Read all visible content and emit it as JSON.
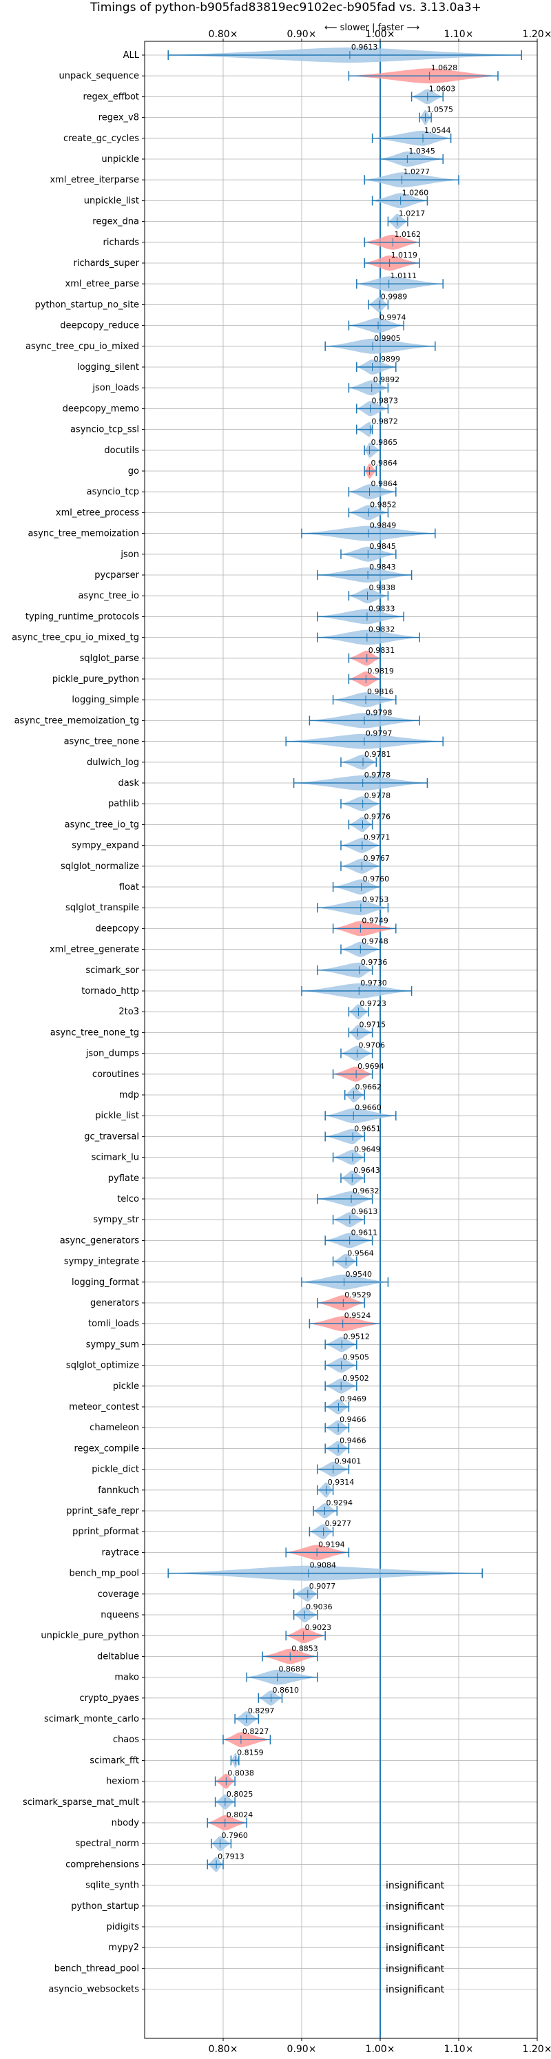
{
  "chart_data": {
    "type": "violin",
    "title": "Timings of python-b905fad83819ec9102ec-b905fad vs. 3.13.0a3+",
    "direction_label": "⟵ slower  |  faster ⟶",
    "xlim": [
      0.7,
      1.2
    ],
    "xticks": [
      0.8,
      0.9,
      1.0,
      1.1,
      1.2
    ],
    "xtick_labels": [
      "0.80×",
      "0.90×",
      "1.00×",
      "1.10×",
      "1.20×"
    ],
    "reference_line": 1.0,
    "grid": true,
    "colors": {
      "significant": "#1f77b4",
      "highlight": "#ff9999",
      "normal": "#a6c8e6",
      "median_line": "#1f77b4"
    },
    "insignificant_text": "insignificant",
    "benchmarks": [
      {
        "name": "ALL",
        "value": 0.9613,
        "min": 0.73,
        "max": 1.18,
        "highlight": false
      },
      {
        "name": "unpack_sequence",
        "value": 1.0628,
        "min": 0.96,
        "max": 1.15,
        "highlight": true
      },
      {
        "name": "regex_effbot",
        "value": 1.0603,
        "min": 1.04,
        "max": 1.08,
        "highlight": false
      },
      {
        "name": "regex_v8",
        "value": 1.0575,
        "min": 1.05,
        "max": 1.065,
        "highlight": false
      },
      {
        "name": "create_gc_cycles",
        "value": 1.0544,
        "min": 0.99,
        "max": 1.09,
        "highlight": false
      },
      {
        "name": "unpickle",
        "value": 1.0345,
        "min": 1.0,
        "max": 1.08,
        "highlight": false
      },
      {
        "name": "xml_etree_iterparse",
        "value": 1.0277,
        "min": 0.98,
        "max": 1.1,
        "highlight": false
      },
      {
        "name": "unpickle_list",
        "value": 1.026,
        "min": 0.99,
        "max": 1.06,
        "highlight": false
      },
      {
        "name": "regex_dna",
        "value": 1.0217,
        "min": 1.01,
        "max": 1.035,
        "highlight": false
      },
      {
        "name": "richards",
        "value": 1.0162,
        "min": 0.98,
        "max": 1.05,
        "highlight": true
      },
      {
        "name": "richards_super",
        "value": 1.0119,
        "min": 0.98,
        "max": 1.05,
        "highlight": true
      },
      {
        "name": "xml_etree_parse",
        "value": 1.0111,
        "min": 0.97,
        "max": 1.08,
        "highlight": false
      },
      {
        "name": "python_startup_no_site",
        "value": 0.9989,
        "min": 0.985,
        "max": 1.01,
        "highlight": false
      },
      {
        "name": "deepcopy_reduce",
        "value": 0.9974,
        "min": 0.96,
        "max": 1.03,
        "highlight": false
      },
      {
        "name": "async_tree_cpu_io_mixed",
        "value": 0.9905,
        "min": 0.93,
        "max": 1.07,
        "highlight": false
      },
      {
        "name": "logging_silent",
        "value": 0.9899,
        "min": 0.97,
        "max": 1.02,
        "highlight": false
      },
      {
        "name": "json_loads",
        "value": 0.9892,
        "min": 0.96,
        "max": 1.01,
        "highlight": false
      },
      {
        "name": "deepcopy_memo",
        "value": 0.9873,
        "min": 0.97,
        "max": 1.01,
        "highlight": false
      },
      {
        "name": "asyncio_tcp_ssl",
        "value": 0.9872,
        "min": 0.97,
        "max": 0.99,
        "highlight": false
      },
      {
        "name": "docutils",
        "value": 0.9865,
        "min": 0.98,
        "max": 1.0,
        "highlight": false
      },
      {
        "name": "go",
        "value": 0.9864,
        "min": 0.98,
        "max": 0.995,
        "highlight": true
      },
      {
        "name": "asyncio_tcp",
        "value": 0.9864,
        "min": 0.96,
        "max": 1.02,
        "highlight": false
      },
      {
        "name": "xml_etree_process",
        "value": 0.9852,
        "min": 0.96,
        "max": 1.01,
        "highlight": false
      },
      {
        "name": "async_tree_memoization",
        "value": 0.9849,
        "min": 0.9,
        "max": 1.07,
        "highlight": false
      },
      {
        "name": "json",
        "value": 0.9845,
        "min": 0.95,
        "max": 1.02,
        "highlight": false
      },
      {
        "name": "pycparser",
        "value": 0.9843,
        "min": 0.92,
        "max": 1.04,
        "highlight": false
      },
      {
        "name": "async_tree_io",
        "value": 0.9838,
        "min": 0.96,
        "max": 1.01,
        "highlight": false
      },
      {
        "name": "typing_runtime_protocols",
        "value": 0.9833,
        "min": 0.92,
        "max": 1.03,
        "highlight": false
      },
      {
        "name": "async_tree_cpu_io_mixed_tg",
        "value": 0.9832,
        "min": 0.92,
        "max": 1.05,
        "highlight": false
      },
      {
        "name": "sqlglot_parse",
        "value": 0.9831,
        "min": 0.96,
        "max": 1.0,
        "highlight": true
      },
      {
        "name": "pickle_pure_python",
        "value": 0.9819,
        "min": 0.96,
        "max": 1.0,
        "highlight": true
      },
      {
        "name": "logging_simple",
        "value": 0.9816,
        "min": 0.94,
        "max": 1.02,
        "highlight": false
      },
      {
        "name": "async_tree_memoization_tg",
        "value": 0.9798,
        "min": 0.91,
        "max": 1.05,
        "highlight": false
      },
      {
        "name": "async_tree_none",
        "value": 0.9797,
        "min": 0.88,
        "max": 1.08,
        "highlight": false
      },
      {
        "name": "dulwich_log",
        "value": 0.9781,
        "min": 0.95,
        "max": 0.995,
        "highlight": false
      },
      {
        "name": "dask",
        "value": 0.9778,
        "min": 0.89,
        "max": 1.06,
        "highlight": false
      },
      {
        "name": "pathlib",
        "value": 0.9778,
        "min": 0.95,
        "max": 1.0,
        "highlight": false
      },
      {
        "name": "async_tree_io_tg",
        "value": 0.9776,
        "min": 0.96,
        "max": 0.99,
        "highlight": false
      },
      {
        "name": "sympy_expand",
        "value": 0.9771,
        "min": 0.95,
        "max": 1.0,
        "highlight": false
      },
      {
        "name": "sqlglot_normalize",
        "value": 0.9767,
        "min": 0.95,
        "max": 1.0,
        "highlight": false
      },
      {
        "name": "float",
        "value": 0.976,
        "min": 0.94,
        "max": 1.0,
        "highlight": false
      },
      {
        "name": "sqlglot_transpile",
        "value": 0.9753,
        "min": 0.92,
        "max": 1.01,
        "highlight": false
      },
      {
        "name": "deepcopy",
        "value": 0.9749,
        "min": 0.94,
        "max": 1.02,
        "highlight": true
      },
      {
        "name": "xml_etree_generate",
        "value": 0.9748,
        "min": 0.95,
        "max": 1.0,
        "highlight": false
      },
      {
        "name": "scimark_sor",
        "value": 0.9736,
        "min": 0.92,
        "max": 0.99,
        "highlight": false
      },
      {
        "name": "tornado_http",
        "value": 0.973,
        "min": 0.9,
        "max": 1.04,
        "highlight": false
      },
      {
        "name": "2to3",
        "value": 0.9723,
        "min": 0.96,
        "max": 0.985,
        "highlight": false
      },
      {
        "name": "async_tree_none_tg",
        "value": 0.9715,
        "min": 0.96,
        "max": 0.99,
        "highlight": false
      },
      {
        "name": "json_dumps",
        "value": 0.9706,
        "min": 0.95,
        "max": 0.99,
        "highlight": false
      },
      {
        "name": "coroutines",
        "value": 0.9694,
        "min": 0.94,
        "max": 0.99,
        "highlight": true
      },
      {
        "name": "mdp",
        "value": 0.9662,
        "min": 0.955,
        "max": 0.98,
        "highlight": false
      },
      {
        "name": "pickle_list",
        "value": 0.966,
        "min": 0.93,
        "max": 1.02,
        "highlight": false
      },
      {
        "name": "gc_traversal",
        "value": 0.9651,
        "min": 0.93,
        "max": 0.98,
        "highlight": false
      },
      {
        "name": "scimark_lu",
        "value": 0.9649,
        "min": 0.94,
        "max": 0.98,
        "highlight": false
      },
      {
        "name": "pyflate",
        "value": 0.9643,
        "min": 0.95,
        "max": 0.98,
        "highlight": false
      },
      {
        "name": "telco",
        "value": 0.9632,
        "min": 0.92,
        "max": 0.99,
        "highlight": false
      },
      {
        "name": "sympy_str",
        "value": 0.9613,
        "min": 0.94,
        "max": 0.98,
        "highlight": false
      },
      {
        "name": "async_generators",
        "value": 0.9611,
        "min": 0.93,
        "max": 0.99,
        "highlight": false
      },
      {
        "name": "sympy_integrate",
        "value": 0.9564,
        "min": 0.94,
        "max": 0.97,
        "highlight": false
      },
      {
        "name": "logging_format",
        "value": 0.954,
        "min": 0.9,
        "max": 1.01,
        "highlight": false
      },
      {
        "name": "generators",
        "value": 0.9529,
        "min": 0.92,
        "max": 0.98,
        "highlight": true
      },
      {
        "name": "tomli_loads",
        "value": 0.9524,
        "min": 0.91,
        "max": 1.0,
        "highlight": true
      },
      {
        "name": "sympy_sum",
        "value": 0.9512,
        "min": 0.93,
        "max": 0.97,
        "highlight": false
      },
      {
        "name": "sqlglot_optimize",
        "value": 0.9505,
        "min": 0.93,
        "max": 0.97,
        "highlight": false
      },
      {
        "name": "pickle",
        "value": 0.9502,
        "min": 0.93,
        "max": 0.97,
        "highlight": false
      },
      {
        "name": "meteor_contest",
        "value": 0.9469,
        "min": 0.93,
        "max": 0.96,
        "highlight": false
      },
      {
        "name": "chameleon",
        "value": 0.9466,
        "min": 0.93,
        "max": 0.96,
        "highlight": false
      },
      {
        "name": "regex_compile",
        "value": 0.9466,
        "min": 0.93,
        "max": 0.96,
        "highlight": false
      },
      {
        "name": "pickle_dict",
        "value": 0.9401,
        "min": 0.92,
        "max": 0.96,
        "highlight": false
      },
      {
        "name": "fannkuch",
        "value": 0.9314,
        "min": 0.92,
        "max": 0.94,
        "highlight": false
      },
      {
        "name": "pprint_safe_repr",
        "value": 0.9294,
        "min": 0.915,
        "max": 0.945,
        "highlight": false
      },
      {
        "name": "pprint_pformat",
        "value": 0.9277,
        "min": 0.91,
        "max": 0.94,
        "highlight": false
      },
      {
        "name": "raytrace",
        "value": 0.9194,
        "min": 0.88,
        "max": 0.96,
        "highlight": true
      },
      {
        "name": "bench_mp_pool",
        "value": 0.9084,
        "min": 0.73,
        "max": 1.13,
        "highlight": false
      },
      {
        "name": "coverage",
        "value": 0.9077,
        "min": 0.89,
        "max": 0.92,
        "highlight": false
      },
      {
        "name": "nqueens",
        "value": 0.9036,
        "min": 0.89,
        "max": 0.92,
        "highlight": false
      },
      {
        "name": "unpickle_pure_python",
        "value": 0.9023,
        "min": 0.88,
        "max": 0.93,
        "highlight": true
      },
      {
        "name": "deltablue",
        "value": 0.8853,
        "min": 0.85,
        "max": 0.92,
        "highlight": true
      },
      {
        "name": "mako",
        "value": 0.8689,
        "min": 0.83,
        "max": 0.92,
        "highlight": false
      },
      {
        "name": "crypto_pyaes",
        "value": 0.861,
        "min": 0.845,
        "max": 0.875,
        "highlight": false
      },
      {
        "name": "scimark_monte_carlo",
        "value": 0.8297,
        "min": 0.815,
        "max": 0.845,
        "highlight": false
      },
      {
        "name": "chaos",
        "value": 0.8227,
        "min": 0.8,
        "max": 0.86,
        "highlight": true
      },
      {
        "name": "scimark_fft",
        "value": 0.8159,
        "min": 0.81,
        "max": 0.82,
        "highlight": false
      },
      {
        "name": "hexiom",
        "value": 0.8038,
        "min": 0.79,
        "max": 0.815,
        "highlight": true
      },
      {
        "name": "scimark_sparse_mat_mult",
        "value": 0.8025,
        "min": 0.79,
        "max": 0.815,
        "highlight": false
      },
      {
        "name": "nbody",
        "value": 0.8024,
        "min": 0.78,
        "max": 0.83,
        "highlight": true
      },
      {
        "name": "spectral_norm",
        "value": 0.796,
        "min": 0.785,
        "max": 0.81,
        "highlight": false
      },
      {
        "name": "comprehensions",
        "value": 0.7913,
        "min": 0.78,
        "max": 0.8,
        "highlight": false
      }
    ],
    "insignificant": [
      "sqlite_synth",
      "python_startup",
      "pidigits",
      "mypy2",
      "bench_thread_pool",
      "asyncio_websockets"
    ]
  }
}
